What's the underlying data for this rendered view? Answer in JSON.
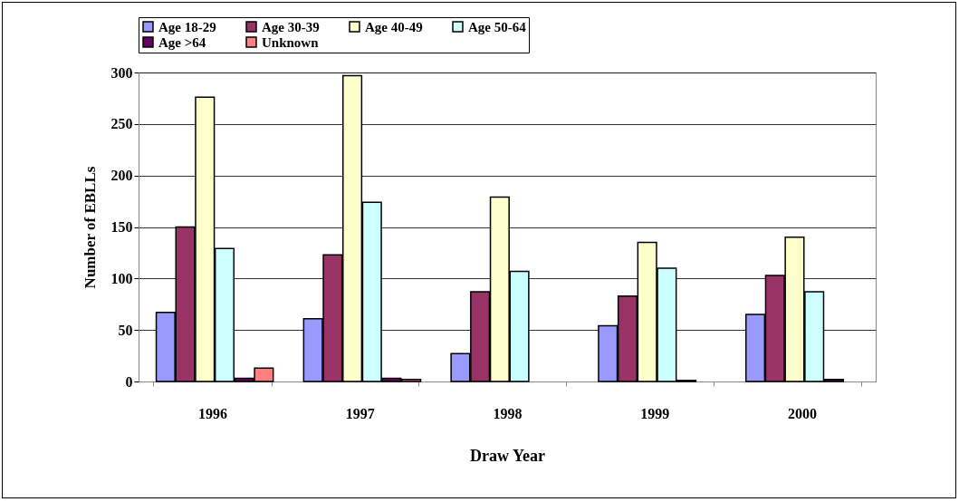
{
  "chart_data": {
    "type": "bar",
    "xlabel": "Draw Year",
    "ylabel": "Number of EBLLs",
    "categories": [
      "1996",
      "1997",
      "1998",
      "1999",
      "2000"
    ],
    "series": [
      {
        "name": "Age 18-29",
        "color": "#9999ff",
        "values": [
          67,
          61,
          27,
          54,
          65
        ]
      },
      {
        "name": "Age 30-39",
        "color": "#993366",
        "values": [
          150,
          123,
          87,
          83,
          103
        ]
      },
      {
        "name": "Age 40-49",
        "color": "#ffffcc",
        "values": [
          276,
          297,
          179,
          135,
          140
        ]
      },
      {
        "name": "Age 50-64",
        "color": "#ccffff",
        "values": [
          129,
          174,
          107,
          110,
          87
        ]
      },
      {
        "name": "Age >64",
        "color": "#660066",
        "values": [
          3,
          3,
          0,
          1,
          2
        ]
      },
      {
        "name": "Unknown",
        "color": "#ff8080",
        "values": [
          13,
          2,
          0,
          0,
          0
        ]
      }
    ],
    "ylim": [
      0,
      300
    ],
    "yticks": [
      0,
      50,
      100,
      150,
      200,
      250,
      300
    ],
    "grid": "y",
    "legend": "top"
  }
}
